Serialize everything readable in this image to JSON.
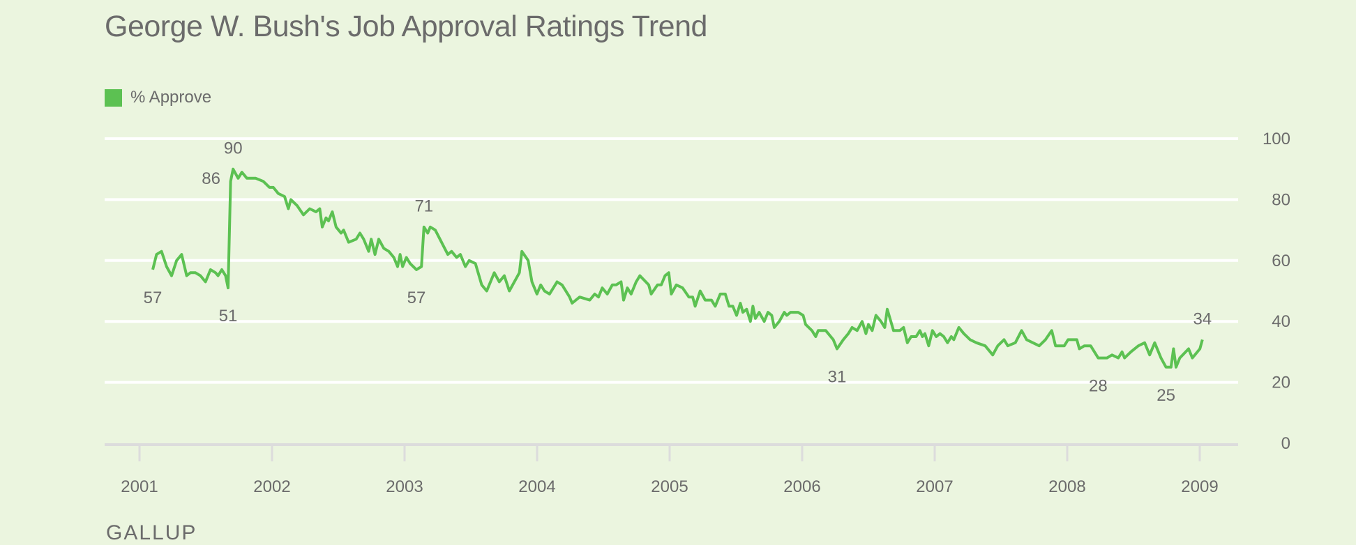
{
  "chart_data": {
    "type": "line",
    "title": "George W. Bush's Job Approval Ratings Trend",
    "xlabel": "",
    "ylabel": "",
    "legend": {
      "position": "top-left",
      "entries": [
        {
          "name": "% Approve",
          "color": "#5cc152"
        }
      ]
    },
    "grid": true,
    "xlim": [
      2001,
      2009
    ],
    "ylim": [
      0,
      100
    ],
    "x_ticks": [
      "2001",
      "2002",
      "2003",
      "2004",
      "2005",
      "2006",
      "2007",
      "2008",
      "2009"
    ],
    "y_ticks": [
      "0",
      "20",
      "40",
      "60",
      "80",
      "100"
    ],
    "y_axis_side": "right",
    "series": [
      {
        "name": "% Approve",
        "color": "#5cc152",
        "points": [
          [
            2001.1,
            57
          ],
          [
            2001.13,
            62
          ],
          [
            2001.17,
            63
          ],
          [
            2001.21,
            58
          ],
          [
            2001.25,
            55
          ],
          [
            2001.29,
            60
          ],
          [
            2001.33,
            62
          ],
          [
            2001.37,
            55
          ],
          [
            2001.4,
            56
          ],
          [
            2001.44,
            56
          ],
          [
            2001.48,
            55
          ],
          [
            2001.52,
            53
          ],
          [
            2001.56,
            57
          ],
          [
            2001.6,
            56
          ],
          [
            2001.62,
            55
          ],
          [
            2001.65,
            57
          ],
          [
            2001.68,
            55
          ],
          [
            2001.7,
            51
          ],
          [
            2001.72,
            86
          ],
          [
            2001.74,
            90
          ],
          [
            2001.78,
            87
          ],
          [
            2001.81,
            89
          ],
          [
            2001.85,
            87
          ],
          [
            2001.92,
            87
          ],
          [
            2001.98,
            86
          ],
          [
            2002.03,
            84
          ],
          [
            2002.06,
            84
          ],
          [
            2002.1,
            82
          ],
          [
            2002.15,
            81
          ],
          [
            2002.18,
            77
          ],
          [
            2002.2,
            80
          ],
          [
            2002.25,
            78
          ],
          [
            2002.3,
            75
          ],
          [
            2002.35,
            77
          ],
          [
            2002.4,
            76
          ],
          [
            2002.43,
            77
          ],
          [
            2002.45,
            71
          ],
          [
            2002.48,
            74
          ],
          [
            2002.5,
            73
          ],
          [
            2002.53,
            76
          ],
          [
            2002.56,
            71
          ],
          [
            2002.6,
            69
          ],
          [
            2002.62,
            70
          ],
          [
            2002.66,
            66
          ],
          [
            2002.72,
            67
          ],
          [
            2002.75,
            69
          ],
          [
            2002.78,
            67
          ],
          [
            2002.82,
            63
          ],
          [
            2002.84,
            67
          ],
          [
            2002.87,
            62
          ],
          [
            2002.9,
            67
          ],
          [
            2002.94,
            64
          ],
          [
            2002.98,
            63
          ],
          [
            2003.02,
            61
          ],
          [
            2003.05,
            58
          ],
          [
            2003.07,
            62
          ],
          [
            2003.09,
            58
          ],
          [
            2003.12,
            61
          ],
          [
            2003.15,
            59
          ],
          [
            2003.2,
            57
          ],
          [
            2003.24,
            58
          ],
          [
            2003.26,
            71
          ],
          [
            2003.29,
            69
          ],
          [
            2003.31,
            71
          ],
          [
            2003.35,
            70
          ],
          [
            2003.4,
            66
          ],
          [
            2003.45,
            62
          ],
          [
            2003.48,
            63
          ],
          [
            2003.52,
            61
          ],
          [
            2003.55,
            62
          ],
          [
            2003.59,
            58
          ],
          [
            2003.62,
            60
          ],
          [
            2003.67,
            59
          ],
          [
            2003.72,
            52
          ],
          [
            2003.76,
            50
          ],
          [
            2003.82,
            56
          ],
          [
            2003.86,
            53
          ],
          [
            2003.9,
            55
          ],
          [
            2003.94,
            50
          ],
          [
            2004.02,
            56
          ],
          [
            2004.04,
            63
          ],
          [
            2004.09,
            60
          ],
          [
            2004.12,
            53
          ],
          [
            2004.16,
            49
          ],
          [
            2004.19,
            52
          ],
          [
            2004.22,
            50
          ],
          [
            2004.26,
            49
          ],
          [
            2004.32,
            53
          ],
          [
            2004.36,
            52
          ],
          [
            2004.42,
            48
          ],
          [
            2004.44,
            46
          ],
          [
            2004.5,
            48
          ],
          [
            2004.58,
            47
          ],
          [
            2004.62,
            49
          ],
          [
            2004.65,
            48
          ],
          [
            2004.68,
            51
          ],
          [
            2004.72,
            49
          ],
          [
            2004.76,
            52
          ],
          [
            2004.79,
            52
          ],
          [
            2004.83,
            53
          ],
          [
            2004.85,
            47
          ],
          [
            2004.88,
            51
          ],
          [
            2004.91,
            49
          ],
          [
            2004.95,
            53
          ],
          [
            2004.98,
            55
          ],
          [
            2005.05,
            52
          ],
          [
            2005.07,
            49
          ],
          [
            2005.12,
            52
          ],
          [
            2005.15,
            52
          ],
          [
            2005.18,
            55
          ],
          [
            2005.21,
            56
          ],
          [
            2005.23,
            49
          ],
          [
            2005.27,
            52
          ],
          [
            2005.32,
            51
          ],
          [
            2005.37,
            48
          ],
          [
            2005.4,
            48
          ],
          [
            2005.42,
            45
          ],
          [
            2005.46,
            50
          ],
          [
            2005.5,
            47
          ],
          [
            2005.55,
            47
          ],
          [
            2005.58,
            45
          ],
          [
            2005.62,
            49
          ],
          [
            2005.66,
            49
          ],
          [
            2005.69,
            45
          ],
          [
            2005.72,
            45
          ],
          [
            2005.75,
            42
          ],
          [
            2005.78,
            46
          ],
          [
            2005.8,
            43
          ],
          [
            2005.83,
            44
          ],
          [
            2005.86,
            40
          ],
          [
            2005.88,
            45
          ],
          [
            2005.9,
            41
          ],
          [
            2005.93,
            43
          ],
          [
            2005.97,
            40
          ],
          [
            2006.0,
            43
          ],
          [
            2006.03,
            42
          ],
          [
            2006.05,
            38
          ],
          [
            2006.09,
            40
          ],
          [
            2006.13,
            43
          ],
          [
            2006.15,
            42
          ],
          [
            2006.18,
            43
          ],
          [
            2006.24,
            43
          ],
          [
            2006.28,
            42
          ],
          [
            2006.3,
            39
          ],
          [
            2006.35,
            37
          ],
          [
            2006.38,
            35
          ],
          [
            2006.4,
            37
          ],
          [
            2006.46,
            37
          ],
          [
            2006.52,
            34
          ],
          [
            2006.55,
            31
          ],
          [
            2006.6,
            34
          ],
          [
            2006.64,
            36
          ],
          [
            2006.67,
            38
          ],
          [
            2006.71,
            37
          ],
          [
            2006.75,
            40
          ],
          [
            2006.78,
            36
          ],
          [
            2006.8,
            39
          ],
          [
            2006.83,
            37
          ],
          [
            2006.86,
            42
          ],
          [
            2006.9,
            40
          ],
          [
            2006.93,
            38
          ],
          [
            2006.95,
            44
          ],
          [
            2007.0,
            37
          ],
          [
            2007.05,
            37
          ],
          [
            2007.08,
            38
          ],
          [
            2007.11,
            33
          ],
          [
            2007.14,
            35
          ],
          [
            2007.18,
            35
          ],
          [
            2007.21,
            37
          ],
          [
            2007.23,
            35
          ],
          [
            2007.25,
            36
          ],
          [
            2007.28,
            32
          ],
          [
            2007.31,
            37
          ],
          [
            2007.34,
            35
          ],
          [
            2007.37,
            36
          ],
          [
            2007.4,
            35
          ],
          [
            2007.43,
            33
          ],
          [
            2007.46,
            35
          ],
          [
            2007.48,
            34
          ],
          [
            2007.52,
            38
          ],
          [
            2007.56,
            36
          ],
          [
            2007.61,
            34
          ],
          [
            2007.66,
            33
          ],
          [
            2007.73,
            32
          ],
          [
            2007.79,
            29
          ],
          [
            2007.83,
            32
          ],
          [
            2007.88,
            34
          ],
          [
            2007.91,
            32
          ],
          [
            2007.97,
            33
          ],
          [
            2008.02,
            37
          ],
          [
            2008.06,
            34
          ],
          [
            2008.11,
            33
          ],
          [
            2008.16,
            32
          ],
          [
            2008.21,
            34
          ],
          [
            2008.26,
            37
          ],
          [
            2008.29,
            32
          ],
          [
            2008.36,
            32
          ],
          [
            2008.39,
            34
          ],
          [
            2008.46,
            34
          ],
          [
            2008.48,
            31
          ],
          [
            2008.52,
            32
          ],
          [
            2008.57,
            32
          ],
          [
            2008.63,
            28
          ],
          [
            2008.7,
            28
          ],
          [
            2008.74,
            29
          ],
          [
            2008.79,
            28
          ],
          [
            2008.82,
            30
          ],
          [
            2008.84,
            28
          ],
          [
            2008.89,
            30
          ],
          [
            2008.95,
            32
          ],
          [
            2009.0,
            33
          ],
          [
            2009.04,
            29
          ],
          [
            2009.08,
            33
          ],
          [
            2009.13,
            28
          ],
          [
            2009.17,
            25
          ],
          [
            2009.21,
            25
          ],
          [
            2009.23,
            31
          ],
          [
            2009.25,
            25
          ],
          [
            2009.28,
            28
          ],
          [
            2009.35,
            31
          ],
          [
            2009.38,
            28
          ],
          [
            2009.44,
            31
          ],
          [
            2009.46,
            34
          ]
        ]
      }
    ],
    "annotations": [
      {
        "text": "57",
        "x": 2001.1,
        "y": 57,
        "position": "below"
      },
      {
        "text": "51",
        "x": 2001.7,
        "y": 51,
        "position": "below"
      },
      {
        "text": "86",
        "x": 2001.72,
        "y": 86,
        "position": "left"
      },
      {
        "text": "90",
        "x": 2001.74,
        "y": 90,
        "position": "above"
      },
      {
        "text": "57",
        "x": 2003.2,
        "y": 57,
        "position": "below"
      },
      {
        "text": "71",
        "x": 2003.26,
        "y": 71,
        "position": "above"
      },
      {
        "text": "31",
        "x": 2006.55,
        "y": 31,
        "position": "below"
      },
      {
        "text": "28",
        "x": 2008.63,
        "y": 28,
        "position": "below"
      },
      {
        "text": "25",
        "x": 2009.17,
        "y": 25,
        "position": "below"
      },
      {
        "text": "34",
        "x": 2009.46,
        "y": 34,
        "position": "above"
      }
    ]
  },
  "legend_label": "% Approve",
  "source": "GALLUP"
}
